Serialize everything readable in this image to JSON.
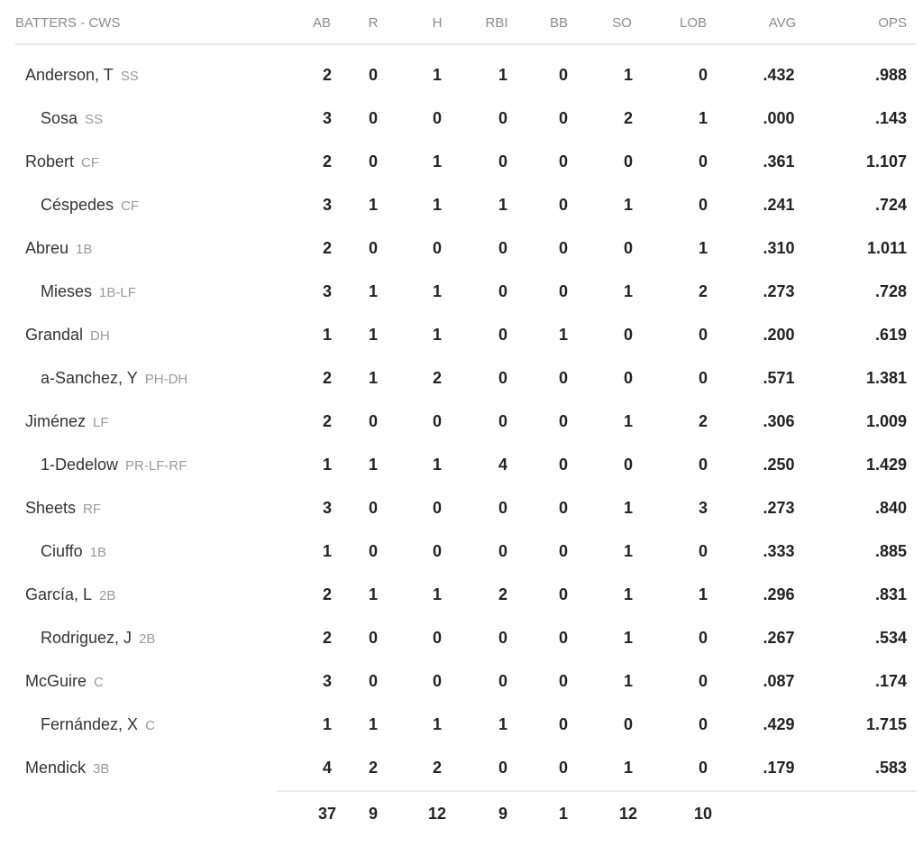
{
  "header": {
    "title": "BATTERS - CWS",
    "columns": [
      "AB",
      "R",
      "H",
      "RBI",
      "BB",
      "SO",
      "LOB",
      "AVG",
      "OPS"
    ]
  },
  "batters": [
    {
      "name": "Anderson, T",
      "pos": "SS",
      "sub": false,
      "stats": [
        "2",
        "0",
        "1",
        "1",
        "0",
        "1",
        "0",
        ".432",
        ".988"
      ]
    },
    {
      "name": "Sosa",
      "pos": "SS",
      "sub": true,
      "stats": [
        "3",
        "0",
        "0",
        "0",
        "0",
        "2",
        "1",
        ".000",
        ".143"
      ]
    },
    {
      "name": "Robert",
      "pos": "CF",
      "sub": false,
      "stats": [
        "2",
        "0",
        "1",
        "0",
        "0",
        "0",
        "0",
        ".361",
        "1.107"
      ]
    },
    {
      "name": "Céspedes",
      "pos": "CF",
      "sub": true,
      "stats": [
        "3",
        "1",
        "1",
        "1",
        "0",
        "1",
        "0",
        ".241",
        ".724"
      ]
    },
    {
      "name": "Abreu",
      "pos": "1B",
      "sub": false,
      "stats": [
        "2",
        "0",
        "0",
        "0",
        "0",
        "0",
        "1",
        ".310",
        "1.011"
      ]
    },
    {
      "name": "Mieses",
      "pos": "1B-LF",
      "sub": true,
      "stats": [
        "3",
        "1",
        "1",
        "0",
        "0",
        "1",
        "2",
        ".273",
        ".728"
      ]
    },
    {
      "name": "Grandal",
      "pos": "DH",
      "sub": false,
      "stats": [
        "1",
        "1",
        "1",
        "0",
        "1",
        "0",
        "0",
        ".200",
        ".619"
      ]
    },
    {
      "name": "a-Sanchez, Y",
      "pos": "PH-DH",
      "sub": true,
      "stats": [
        "2",
        "1",
        "2",
        "0",
        "0",
        "0",
        "0",
        ".571",
        "1.381"
      ]
    },
    {
      "name": "Jiménez",
      "pos": "LF",
      "sub": false,
      "stats": [
        "2",
        "0",
        "0",
        "0",
        "0",
        "1",
        "2",
        ".306",
        "1.009"
      ]
    },
    {
      "name": "1-Dedelow",
      "pos": "PR-LF-RF",
      "sub": true,
      "stats": [
        "1",
        "1",
        "1",
        "4",
        "0",
        "0",
        "0",
        ".250",
        "1.429"
      ]
    },
    {
      "name": "Sheets",
      "pos": "RF",
      "sub": false,
      "stats": [
        "3",
        "0",
        "0",
        "0",
        "0",
        "1",
        "3",
        ".273",
        ".840"
      ]
    },
    {
      "name": "Ciuffo",
      "pos": "1B",
      "sub": true,
      "stats": [
        "1",
        "0",
        "0",
        "0",
        "0",
        "1",
        "0",
        ".333",
        ".885"
      ]
    },
    {
      "name": "García, L",
      "pos": "2B",
      "sub": false,
      "stats": [
        "2",
        "1",
        "1",
        "2",
        "0",
        "1",
        "1",
        ".296",
        ".831"
      ]
    },
    {
      "name": "Rodriguez, J",
      "pos": "2B",
      "sub": true,
      "stats": [
        "2",
        "0",
        "0",
        "0",
        "0",
        "1",
        "0",
        ".267",
        ".534"
      ]
    },
    {
      "name": "McGuire",
      "pos": "C",
      "sub": false,
      "stats": [
        "3",
        "0",
        "0",
        "0",
        "0",
        "1",
        "0",
        ".087",
        ".174"
      ]
    },
    {
      "name": "Fernández, X",
      "pos": "C",
      "sub": true,
      "stats": [
        "1",
        "1",
        "1",
        "1",
        "0",
        "0",
        "0",
        ".429",
        "1.715"
      ]
    },
    {
      "name": "Mendick",
      "pos": "3B",
      "sub": false,
      "stats": [
        "4",
        "2",
        "2",
        "0",
        "0",
        "1",
        "0",
        ".179",
        ".583"
      ]
    }
  ],
  "totals": [
    "37",
    "9",
    "12",
    "9",
    "1",
    "12",
    "10"
  ]
}
